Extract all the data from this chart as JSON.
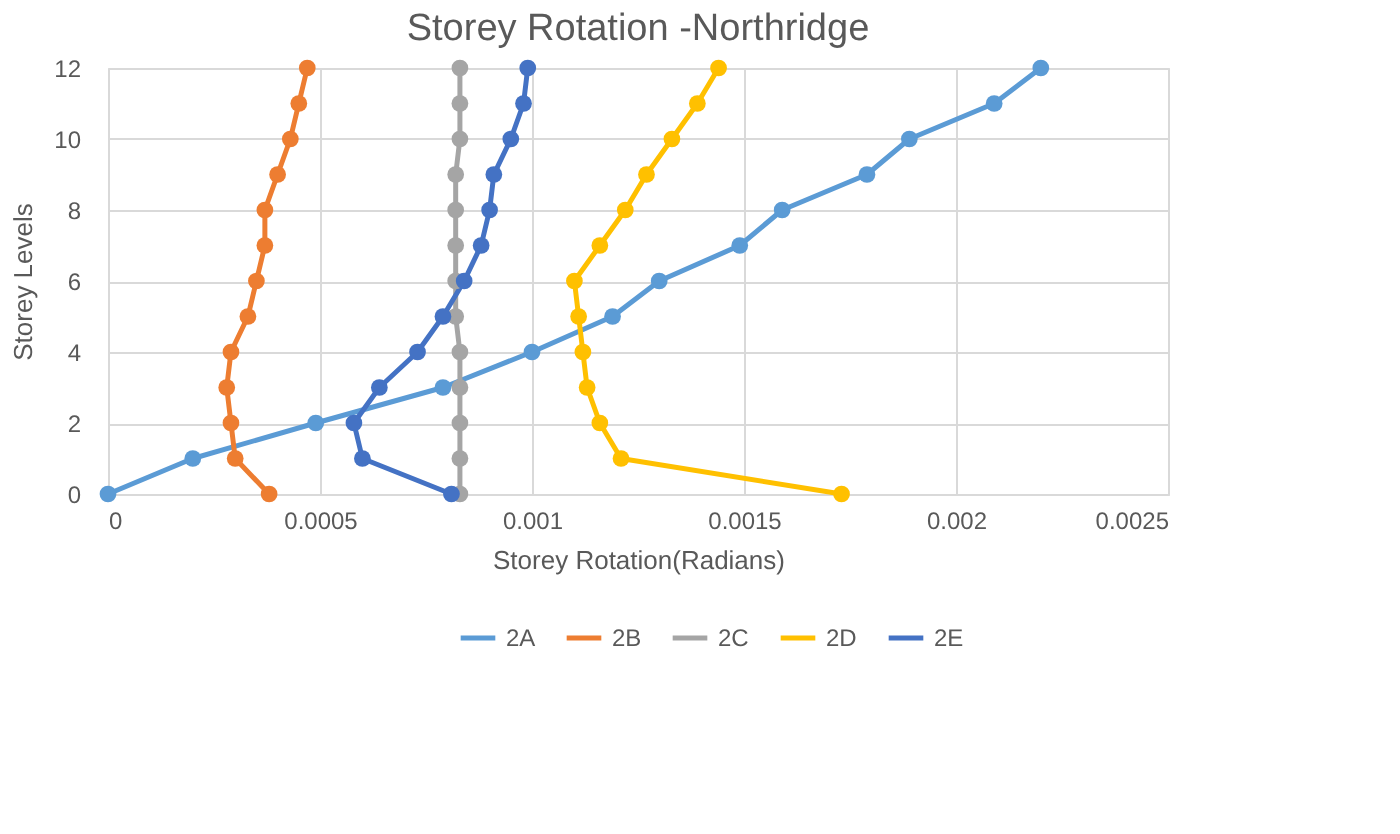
{
  "chart_data": {
    "type": "line",
    "title": "Storey Rotation -Northridge",
    "xlabel": "Storey Rotation(Radians)",
    "ylabel": "Storey Levels",
    "xlim": [
      0,
      0.0025
    ],
    "xticks": [
      0,
      0.0005,
      0.001,
      0.0015,
      0.002,
      0.0025
    ],
    "ylim": [
      0,
      12
    ],
    "yticks": [
      0,
      2,
      4,
      6,
      8,
      10,
      12
    ],
    "grid": true,
    "legend": "bottom",
    "marker": "circle",
    "line_style": "solid",
    "series": [
      {
        "name": "2A",
        "color": "#5b9bd5",
        "x": [
          0,
          0.0002,
          0.00049,
          0.00079,
          0.001,
          0.00119,
          0.0013,
          0.00149,
          0.00159,
          0.00179,
          0.00189,
          0.00209,
          0.0022
        ],
        "values": [
          0,
          1,
          2,
          3,
          4,
          5,
          6,
          7,
          8,
          9,
          10,
          11,
          12
        ]
      },
      {
        "name": "2B",
        "color": "#ed7d31",
        "x": [
          0.00038,
          0.0003,
          0.00029,
          0.00028,
          0.00029,
          0.00033,
          0.00035,
          0.00037,
          0.00037,
          0.0004,
          0.00043,
          0.00045,
          0.00047
        ],
        "values": [
          0,
          1,
          2,
          3,
          4,
          5,
          6,
          7,
          8,
          9,
          10,
          11,
          12
        ]
      },
      {
        "name": "2C",
        "color": "#a5a5a5",
        "x": [
          0.00083,
          0.00083,
          0.00083,
          0.00083,
          0.00083,
          0.00082,
          0.00082,
          0.00082,
          0.00082,
          0.00082,
          0.00083,
          0.00083,
          0.00083
        ],
        "values": [
          0,
          1,
          2,
          3,
          4,
          5,
          6,
          7,
          8,
          9,
          10,
          11,
          12
        ]
      },
      {
        "name": "2D",
        "color": "#ffc000",
        "x": [
          0.00173,
          0.00121,
          0.00116,
          0.00113,
          0.00112,
          0.00111,
          0.0011,
          0.00116,
          0.00122,
          0.00127,
          0.00133,
          0.00139,
          0.00144
        ],
        "values": [
          0,
          1,
          2,
          3,
          4,
          5,
          6,
          7,
          8,
          9,
          10,
          11,
          12
        ]
      },
      {
        "name": "2E",
        "color": "#4472c4",
        "x": [
          0.00081,
          0.0006,
          0.00058,
          0.00064,
          0.00073,
          0.00079,
          0.00084,
          0.00088,
          0.0009,
          0.00091,
          0.00095,
          0.00098,
          0.00099
        ],
        "values": [
          0,
          1,
          2,
          3,
          4,
          5,
          6,
          7,
          8,
          9,
          10,
          11,
          12
        ]
      }
    ]
  }
}
